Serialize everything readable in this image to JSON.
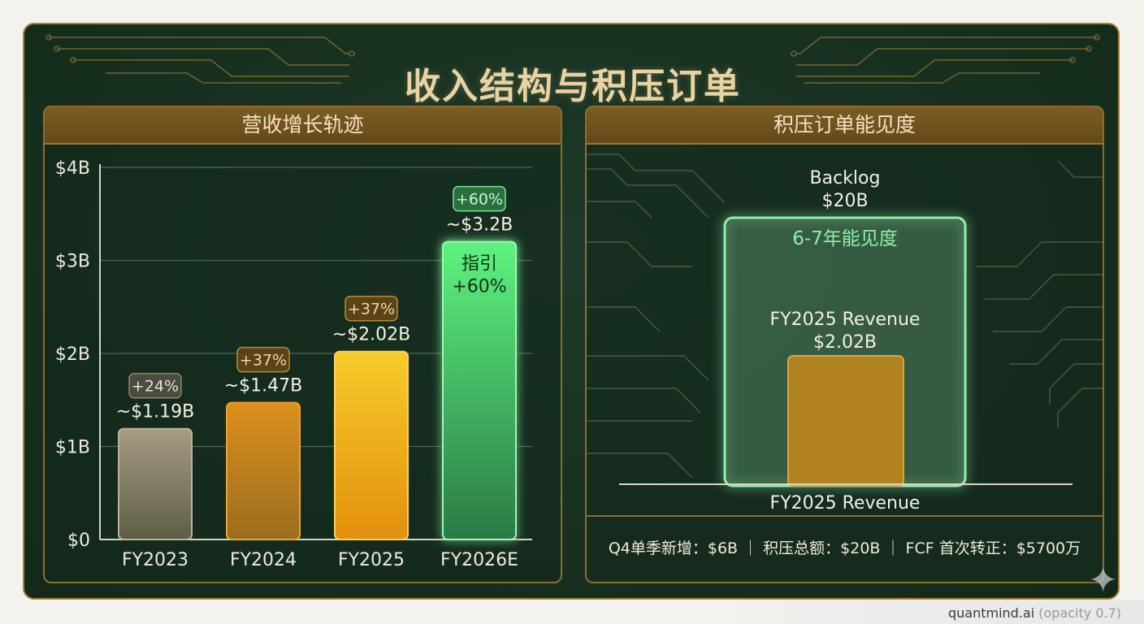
{
  "title": "收入结构与积压订单",
  "colors": {
    "fy2023": "#9d9378",
    "fy2024": "#d48b1c",
    "fy2025": "#f0b21c",
    "fy2026e": "#47d870",
    "backlog": "#7ee09a",
    "revenue_box": "#c8901d",
    "accent_gold": "#a8823a"
  },
  "chart_data": [
    {
      "type": "bar",
      "title": "营收增长轨迹",
      "categories": [
        "FY2023",
        "FY2024",
        "FY2025",
        "FY2026E"
      ],
      "values": [
        1.19,
        1.47,
        2.02,
        3.2
      ],
      "value_labels": [
        "~$1.19B",
        "~$1.47B",
        "~$2.02B",
        "~$3.2B"
      ],
      "growth_labels": [
        "+24%",
        "+37%",
        "+37%",
        "+60%"
      ],
      "inner_label": "指引\n+60%",
      "ylim": [
        0,
        4
      ],
      "yticks": [
        "$0",
        "$1B",
        "$2B",
        "$3B",
        "$4B"
      ],
      "grid": true
    },
    {
      "type": "bar",
      "title": "积压订单能见度",
      "categories": [
        "Backlog",
        "FY2025 Revenue"
      ],
      "values": [
        20,
        2.02
      ],
      "labels": {
        "backlog_name": "Backlog",
        "backlog_value": "$20B",
        "backlog_inner": "6-7年能见度",
        "revenue_name": "FY2025 Revenue",
        "revenue_value": "$2.02B",
        "xaxis_label": "FY2025 Revenue"
      }
    }
  ],
  "footer": "Q4单季新增：$6B ｜ 积压总额：$20B ｜ FCF 首次转正：$5700万",
  "brand": {
    "name": "quantmind.ai",
    "note": "(opacity 0.7)"
  }
}
